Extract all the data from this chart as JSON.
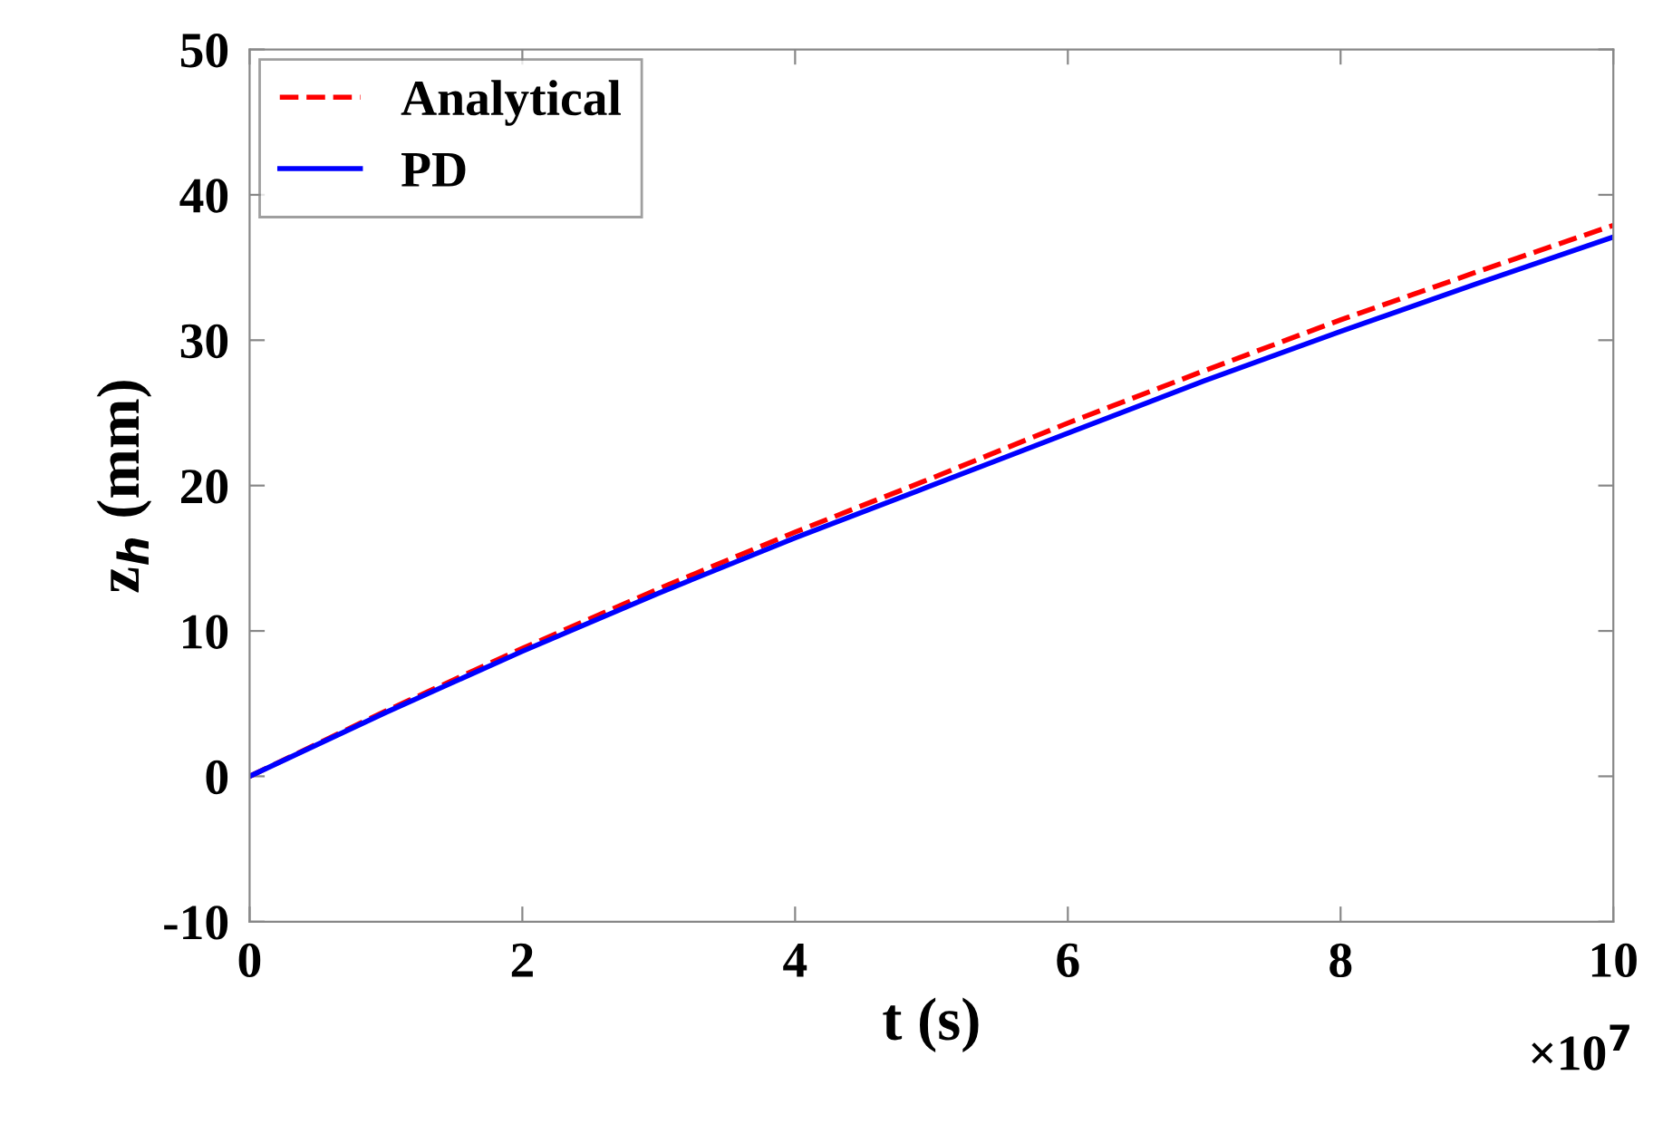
{
  "chart_data": {
    "type": "line",
    "xlabel": "t (s)",
    "ylabel": "z$_{h}$ (mm)",
    "x": [
      0,
      1,
      2,
      3,
      4,
      5,
      6,
      7,
      8,
      9,
      10
    ],
    "series": [
      {
        "name": "Analytical",
        "color": "#ff0000",
        "line_style": "dashed",
        "values": [
          0,
          4.5,
          8.8,
          12.9,
          16.8,
          20.5,
          24.3,
          27.9,
          31.4,
          34.7,
          37.9
        ]
      },
      {
        "name": "PD",
        "color": "#0000ff",
        "line_style": "solid",
        "values": [
          0,
          4.4,
          8.6,
          12.6,
          16.4,
          20.0,
          23.6,
          27.2,
          30.6,
          33.9,
          37.1
        ]
      }
    ],
    "xlim": [
      0,
      10
    ],
    "xticks": [
      0,
      2,
      4,
      6,
      8,
      10
    ],
    "ylim": [
      -10,
      50
    ],
    "yticks": [
      -10,
      0,
      10,
      20,
      30,
      40,
      50
    ],
    "annotations": [
      "×10$^{7}$"
    ],
    "grid": false,
    "legend": "top left",
    "marker": "none"
  }
}
